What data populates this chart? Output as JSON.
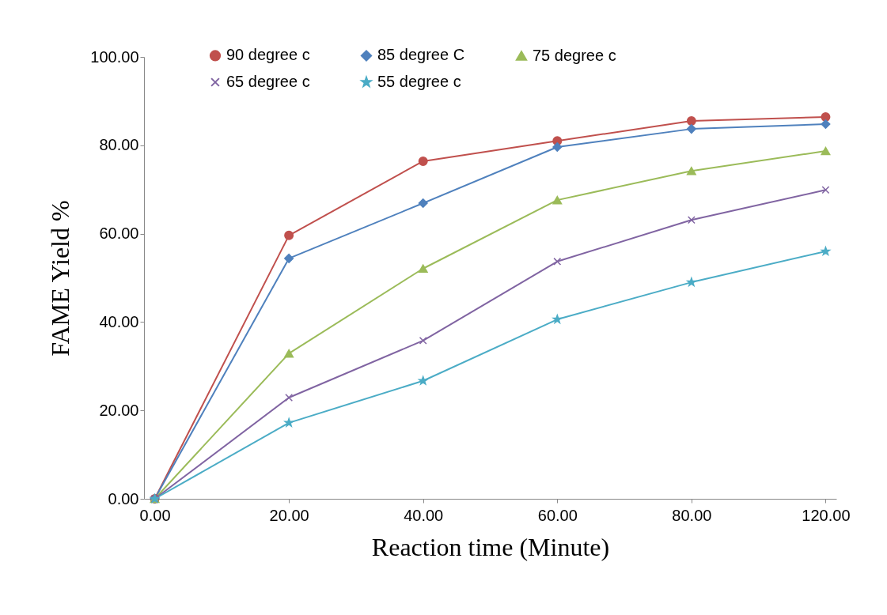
{
  "chart_data": {
    "type": "line",
    "xlabel": "Reaction time (Minute)",
    "ylabel": "FAME Yield %",
    "categories": [
      "0.00",
      "20.00",
      "40.00",
      "60.00",
      "80.00",
      "120.00"
    ],
    "series": [
      {
        "name": "90 degree c",
        "color": "#c0504d",
        "marker": "circle",
        "values": [
          0,
          59.6,
          76.4,
          81.0,
          85.5,
          86.4
        ]
      },
      {
        "name": " 85 degree C",
        "color": "#4f81bd",
        "marker": "diamond",
        "values": [
          0,
          54.4,
          66.9,
          79.6,
          83.7,
          84.8
        ]
      },
      {
        "name": "75 degree c",
        "color": "#9bbb59",
        "marker": "triangle",
        "values": [
          0,
          32.9,
          52.1,
          67.6,
          74.2,
          78.7
        ]
      },
      {
        "name": "65 degree c",
        "color": "#8064a2",
        "marker": "cross",
        "values": [
          0,
          22.9,
          35.8,
          53.7,
          63.1,
          69.9
        ]
      },
      {
        "name": "55 degree c",
        "color": "#4bacc6",
        "marker": "star",
        "values": [
          0,
          17.2,
          26.7,
          40.6,
          49.0,
          56.0
        ]
      }
    ],
    "ylim": [
      0,
      100
    ],
    "yticks": [
      {
        "value": 0,
        "label": "0.00"
      },
      {
        "value": 20,
        "label": "20.00"
      },
      {
        "value": 40,
        "label": "40.00"
      },
      {
        "value": 60,
        "label": "60.00"
      },
      {
        "value": 80,
        "label": "80.00"
      },
      {
        "value": 100,
        "label": "100.00"
      }
    ],
    "grid": false,
    "legend": "top"
  }
}
